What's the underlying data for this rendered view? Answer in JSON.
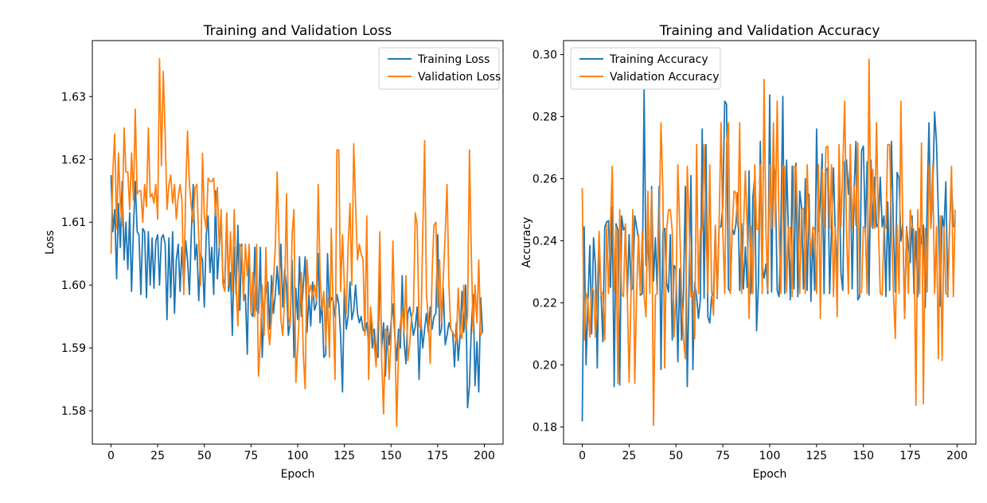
{
  "figure": {
    "background": "#ffffff",
    "axes_color": "#000000",
    "legend_border_color": "#cccccc",
    "legend_background": "#ffffff"
  },
  "chart_data": [
    {
      "type": "line",
      "title": "Training and Validation Loss",
      "xlabel": "Epoch",
      "ylabel": "Loss",
      "x_start": 0,
      "x_step": 1,
      "n_points": 200,
      "xlim": [
        -10,
        210
      ],
      "ylim": [
        1.5747,
        1.6389
      ],
      "xticks": [
        0,
        25,
        50,
        75,
        100,
        125,
        150,
        175,
        200
      ],
      "yticks": [
        1.58,
        1.59,
        1.6,
        1.61,
        1.62,
        1.63
      ],
      "ytick_labels": [
        "1.58",
        "1.59",
        "1.60",
        "1.61",
        "1.62",
        "1.63"
      ],
      "grid": false,
      "legend_position": "upper-right",
      "series": [
        {
          "name": "Training Loss",
          "color": "#1f77b4",
          "values": [
            1.6175,
            1.6085,
            1.612,
            1.601,
            1.613,
            1.606,
            1.6165,
            1.604,
            1.61,
            1.6025,
            1.6115,
            1.599,
            1.609,
            1.6165,
            1.6085,
            1.608,
            1.5985,
            1.609,
            1.6085,
            1.598,
            1.6085,
            1.6,
            1.6075,
            1.5995,
            1.607,
            1.608,
            1.6,
            1.6075,
            1.608,
            1.6065,
            1.5945,
            1.6075,
            1.598,
            1.6085,
            1.5955,
            1.604,
            1.6065,
            1.599,
            1.606,
            1.5995,
            1.607,
            1.604,
            1.5985,
            1.608,
            1.616,
            1.604,
            1.6065,
            1.5975,
            1.605,
            1.604,
            1.5965,
            1.608,
            1.611,
            1.602,
            1.606,
            1.5985,
            1.615,
            1.601,
            1.606,
            1.6105,
            1.6,
            1.601,
            1.611,
            1.599,
            1.602,
            1.592,
            1.606,
            1.5985,
            1.6095,
            1.596,
            1.6065,
            1.5975,
            1.5985,
            1.589,
            1.606,
            1.5955,
            1.595,
            1.606,
            1.596,
            1.5955,
            1.606,
            1.5885,
            1.596,
            1.6,
            1.6005,
            1.593,
            1.6015,
            1.5955,
            1.5985,
            1.603,
            1.5985,
            1.6065,
            1.5965,
            1.6025,
            1.6,
            1.592,
            1.594,
            1.604,
            1.5885,
            1.5995,
            1.5945,
            1.6045,
            1.595,
            1.6,
            1.6045,
            1.5925,
            1.5985,
            1.5935,
            1.6005,
            1.596,
            1.597,
            1.605,
            1.594,
            1.5975,
            1.5885,
            1.589,
            1.605,
            1.5965,
            1.598,
            1.5975,
            1.595,
            1.5985,
            1.597,
            1.592,
            1.583,
            1.5995,
            1.593,
            1.595,
            1.6005,
            1.5945,
            1.596,
            1.6,
            1.5955,
            1.594,
            1.595,
            1.593,
            1.5925,
            1.594,
            1.5905,
            1.595,
            1.59,
            1.593,
            1.589,
            1.5885,
            1.6035,
            1.59,
            1.594,
            1.5855,
            1.5935,
            1.5905,
            1.594,
            1.597,
            1.592,
            1.588,
            1.593,
            1.59,
            1.6015,
            1.591,
            1.5875,
            1.5955,
            1.5965,
            1.5945,
            1.592,
            1.5935,
            1.5965,
            1.585,
            1.5945,
            1.59,
            1.593,
            1.5955,
            1.5925,
            1.5965,
            1.593,
            1.595,
            1.5955,
            1.608,
            1.592,
            1.593,
            1.5995,
            1.5905,
            1.592,
            1.594,
            1.593,
            1.5925,
            1.587,
            1.594,
            1.588,
            1.592,
            1.599,
            1.5925,
            1.6,
            1.5805,
            1.584,
            1.593,
            1.5985,
            1.584,
            1.591,
            1.583,
            1.598,
            1.5925
          ]
        },
        {
          "name": "Validation Loss",
          "color": "#ff7f0e",
          "values": [
            1.605,
            1.618,
            1.624,
            1.609,
            1.621,
            1.613,
            1.6095,
            1.625,
            1.618,
            1.618,
            1.612,
            1.621,
            1.6135,
            1.628,
            1.6145,
            1.615,
            1.615,
            1.61,
            1.616,
            1.6125,
            1.625,
            1.614,
            1.6145,
            1.613,
            1.616,
            1.6105,
            1.636,
            1.619,
            1.634,
            1.624,
            1.612,
            1.616,
            1.6175,
            1.613,
            1.616,
            1.6105,
            1.614,
            1.616,
            1.6135,
            1.5985,
            1.615,
            1.6245,
            1.616,
            1.6125,
            1.61,
            1.6155,
            1.616,
            1.6075,
            1.6,
            1.621,
            1.611,
            1.609,
            1.617,
            1.6165,
            1.6165,
            1.617,
            1.611,
            1.6155,
            1.606,
            1.612,
            1.6,
            1.599,
            1.6115,
            1.6,
            1.6085,
            1.599,
            1.612,
            1.6,
            1.5935,
            1.6065,
            1.606,
            1.5975,
            1.6065,
            1.6015,
            1.6065,
            1.5955,
            1.602,
            1.595,
            1.6065,
            1.5855,
            1.591,
            1.6,
            1.592,
            1.606,
            1.5935,
            1.5905,
            1.595,
            1.6005,
            1.606,
            1.618,
            1.6075,
            1.5945,
            1.592,
            1.598,
            1.6145,
            1.595,
            1.5935,
            1.608,
            1.612,
            1.5845,
            1.59,
            1.596,
            1.602,
            1.589,
            1.5835,
            1.604,
            1.5985,
            1.6,
            1.598,
            1.6,
            1.5975,
            1.616,
            1.6015,
            1.596,
            1.599,
            1.5905,
            1.598,
            1.5885,
            1.609,
            1.596,
            1.585,
            1.6215,
            1.6215,
            1.599,
            1.608,
            1.6,
            1.5955,
            1.606,
            1.613,
            1.6,
            1.6225,
            1.613,
            1.604,
            1.6065,
            1.605,
            1.604,
            1.592,
            1.611,
            1.585,
            1.5965,
            1.5935,
            1.5905,
            1.587,
            1.594,
            1.6085,
            1.588,
            1.5795,
            1.593,
            1.5925,
            1.585,
            1.5915,
            1.607,
            1.5935,
            1.5775,
            1.5895,
            1.594,
            1.596,
            1.5925,
            1.6015,
            1.588,
            1.5905,
            1.595,
            1.596,
            1.6115,
            1.6095,
            1.5935,
            1.593,
            1.608,
            1.623,
            1.5985,
            1.5945,
            1.5875,
            1.602,
            1.6095,
            1.61,
            1.5965,
            1.604,
            1.594,
            1.601,
            1.608,
            1.616,
            1.6,
            1.593,
            1.5925,
            1.592,
            1.591,
            1.5995,
            1.5925,
            1.5915,
            1.6,
            1.593,
            1.595,
            1.6215,
            1.605,
            1.5925,
            1.6,
            1.594,
            1.604,
            1.592,
            1.5925
          ]
        }
      ]
    },
    {
      "type": "line",
      "title": "Training and Validation Accuracy",
      "xlabel": "Epoch",
      "ylabel": "Accuracy",
      "x_start": 0,
      "x_step": 1,
      "n_points": 200,
      "xlim": [
        -10,
        210
      ],
      "ylim": [
        0.1745,
        0.3045
      ],
      "xticks": [
        0,
        25,
        50,
        75,
        100,
        125,
        150,
        175,
        200
      ],
      "yticks": [
        0.18,
        0.2,
        0.22,
        0.24,
        0.26,
        0.28,
        0.3
      ],
      "ytick_labels": [
        "0.18",
        "0.20",
        "0.22",
        "0.24",
        "0.26",
        "0.28",
        "0.30"
      ],
      "grid": false,
      "legend_position": "upper-left",
      "series": [
        {
          "name": "Training Accuracy",
          "color": "#1f77b4",
          "values": [
            0.1818,
            0.2445,
            0.2,
            0.22,
            0.2385,
            0.21,
            0.241,
            0.232,
            0.199,
            0.24,
            0.223,
            0.2075,
            0.2445,
            0.246,
            0.2465,
            0.225,
            0.251,
            0.193,
            0.2455,
            0.2435,
            0.1935,
            0.248,
            0.2435,
            0.2445,
            0.222,
            0.242,
            0.224,
            0.225,
            0.248,
            0.2445,
            0.2405,
            0.2225,
            0.223,
            0.2888,
            0.232,
            0.24,
            0.227,
            0.2575,
            0.227,
            0.241,
            0.223,
            0.2575,
            0.1985,
            0.243,
            0.244,
            0.2265,
            0.2235,
            0.242,
            0.208,
            0.232,
            0.231,
            0.201,
            0.231,
            0.208,
            0.223,
            0.2575,
            0.193,
            0.2265,
            0.261,
            0.1985,
            0.2265,
            0.222,
            0.215,
            0.221,
            0.276,
            0.2215,
            0.271,
            0.2155,
            0.2135,
            0.222,
            0.223,
            0.244,
            0.2215,
            0.2445,
            0.2445,
            0.251,
            0.285,
            0.284,
            0.2245,
            0.2235,
            0.244,
            0.242,
            0.2455,
            0.2555,
            0.224,
            0.2455,
            0.2245,
            0.238,
            0.225,
            0.2625,
            0.223,
            0.254,
            0.2605,
            0.211,
            0.2265,
            0.272,
            0.232,
            0.228,
            0.2325,
            0.223,
            0.287,
            0.2235,
            0.2655,
            0.261,
            0.224,
            0.222,
            0.2455,
            0.2865,
            0.223,
            0.266,
            0.2425,
            0.221,
            0.264,
            0.2245,
            0.265,
            0.222,
            0.256,
            0.251,
            0.2245,
            0.26,
            0.224,
            0.255,
            0.2205,
            0.2425,
            0.224,
            0.276,
            0.243,
            0.253,
            0.268,
            0.223,
            0.2625,
            0.2635,
            0.223,
            0.2445,
            0.2635,
            0.2425,
            0.23,
            0.265,
            0.2295,
            0.224,
            0.2655,
            0.266,
            0.255,
            0.2655,
            0.2245,
            0.256,
            0.272,
            0.221,
            0.222,
            0.269,
            0.2705,
            0.2425,
            0.2655,
            0.2225,
            0.266,
            0.244,
            0.2605,
            0.2445,
            0.2455,
            0.2605,
            0.2445,
            0.248,
            0.222,
            0.2525,
            0.224,
            0.272,
            0.2445,
            0.2235,
            0.262,
            0.26,
            0.24,
            0.2455,
            0.215,
            0.2445,
            0.238,
            0.233,
            0.248,
            0.223,
            0.243,
            0.222,
            0.244,
            0.239,
            0.245,
            0.2185,
            0.252,
            0.278,
            0.244,
            0.256,
            0.2815,
            0.2715,
            0.2485,
            0.219,
            0.248,
            0.244,
            0.259,
            0.222,
            0.244,
            0.259,
            0.245,
            0.244
          ]
        },
        {
          "name": "Validation Accuracy",
          "color": "#ff7f0e",
          "values": [
            0.257,
            0.208,
            0.223,
            0.221,
            0.209,
            0.225,
            0.224,
            0.209,
            0.2235,
            0.243,
            0.2225,
            0.2235,
            0.208,
            0.245,
            0.223,
            0.2445,
            0.264,
            0.224,
            0.2445,
            0.194,
            0.25,
            0.223,
            0.222,
            0.2455,
            0.223,
            0.1945,
            0.223,
            0.25,
            0.194,
            0.223,
            0.242,
            0.223,
            0.243,
            0.2225,
            0.2155,
            0.256,
            0.223,
            0.2565,
            0.1805,
            0.2225,
            0.223,
            0.244,
            0.278,
            0.256,
            0.199,
            0.2435,
            0.25,
            0.25,
            0.243,
            0.209,
            0.2235,
            0.2645,
            0.244,
            0.223,
            0.2085,
            0.202,
            0.264,
            0.246,
            0.222,
            0.2235,
            0.2085,
            0.271,
            0.223,
            0.244,
            0.2435,
            0.271,
            0.244,
            0.223,
            0.2645,
            0.224,
            0.216,
            0.245,
            0.222,
            0.2445,
            0.278,
            0.243,
            0.223,
            0.271,
            0.278,
            0.223,
            0.244,
            0.256,
            0.2555,
            0.2445,
            0.278,
            0.223,
            0.2435,
            0.2625,
            0.244,
            0.215,
            0.2445,
            0.223,
            0.2645,
            0.244,
            0.2435,
            0.2645,
            0.223,
            0.292,
            0.243,
            0.224,
            0.2645,
            0.244,
            0.278,
            0.2445,
            0.285,
            0.243,
            0.223,
            0.264,
            0.264,
            0.2235,
            0.2445,
            0.244,
            0.222,
            0.264,
            0.264,
            0.244,
            0.223,
            0.25,
            0.2505,
            0.223,
            0.2645,
            0.244,
            0.2355,
            0.2445,
            0.2435,
            0.223,
            0.2645,
            0.215,
            0.263,
            0.2445,
            0.27,
            0.2705,
            0.244,
            0.2645,
            0.222,
            0.2445,
            0.2155,
            0.271,
            0.2445,
            0.2635,
            0.285,
            0.243,
            0.223,
            0.271,
            0.244,
            0.2575,
            0.245,
            0.2715,
            0.223,
            0.2235,
            0.2445,
            0.244,
            0.223,
            0.2985,
            0.2445,
            0.263,
            0.244,
            0.278,
            0.2445,
            0.223,
            0.2225,
            0.2445,
            0.244,
            0.271,
            0.271,
            0.244,
            0.2235,
            0.2085,
            0.245,
            0.223,
            0.285,
            0.2445,
            0.215,
            0.244,
            0.223,
            0.25,
            0.2445,
            0.2435,
            0.187,
            0.25,
            0.223,
            0.2715,
            0.1875,
            0.244,
            0.2235,
            0.2645,
            0.244,
            0.2645,
            0.223,
            0.2445,
            0.202,
            0.248,
            0.2015,
            0.2445,
            0.223,
            0.2225,
            0.244,
            0.264,
            0.222,
            0.25
          ]
        }
      ]
    }
  ]
}
